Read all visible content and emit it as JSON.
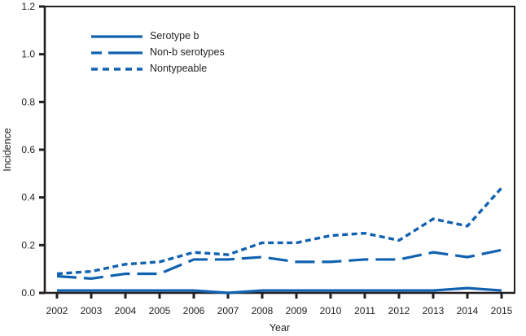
{
  "chart_data": {
    "type": "line",
    "title": "",
    "xlabel": "Year",
    "ylabel": "Incidence",
    "x": [
      2002,
      2003,
      2004,
      2005,
      2006,
      2007,
      2008,
      2009,
      2010,
      2011,
      2012,
      2013,
      2014,
      2015
    ],
    "ylim": [
      0.0,
      1.2
    ],
    "ytick_labels": [
      "0.0",
      "0.2",
      "0.4",
      "0.6",
      "0.8",
      "1.0",
      "1.2"
    ],
    "grid": false,
    "legend_position": "upper-left-inside",
    "line_color": "#1062b0",
    "axis_color": "#231f20",
    "series": [
      {
        "name": "Serotype b",
        "style": "solid",
        "values": [
          0.01,
          0.01,
          0.01,
          0.01,
          0.01,
          0.0,
          0.01,
          0.01,
          0.01,
          0.01,
          0.01,
          0.01,
          0.02,
          0.01
        ]
      },
      {
        "name": "Non-b serotypes",
        "style": "long-dash",
        "values": [
          0.07,
          0.06,
          0.08,
          0.08,
          0.14,
          0.14,
          0.15,
          0.13,
          0.13,
          0.14,
          0.14,
          0.17,
          0.15,
          0.18
        ]
      },
      {
        "name": "Nontypeable",
        "style": "short-dash",
        "values": [
          0.08,
          0.09,
          0.12,
          0.13,
          0.17,
          0.16,
          0.21,
          0.21,
          0.24,
          0.25,
          0.22,
          0.31,
          0.28,
          0.44
        ]
      }
    ]
  }
}
